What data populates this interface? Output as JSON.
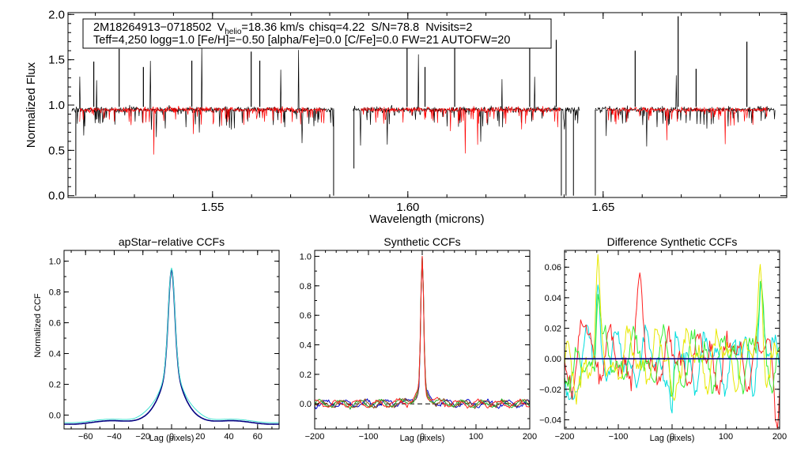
{
  "chart_data": [
    {
      "type": "line",
      "name": "spectrum",
      "xlabel": "Wavelength (microns)",
      "ylabel": "Normalized Flux",
      "xlim": [
        1.513,
        1.697
      ],
      "ylim": [
        -0.02,
        2.02
      ],
      "xticks": [
        "1.55",
        "1.60",
        "1.65"
      ],
      "xtick_values": [
        1.55,
        1.6,
        1.65
      ],
      "yticks": [
        "0.0",
        "0.5",
        "1.0",
        "1.5",
        "2.0"
      ],
      "ytick_values": [
        0.0,
        0.5,
        1.0,
        1.5,
        2.0
      ],
      "chips": [
        [
          1.514,
          1.581
        ],
        [
          1.586,
          1.644
        ],
        [
          1.648,
          1.694
        ]
      ],
      "model_chips": [
        [
          1.516,
          1.579
        ],
        [
          1.588,
          1.639
        ],
        [
          1.651,
          1.692
        ]
      ],
      "series": [
        {
          "name": "observed",
          "color": "#000000"
        },
        {
          "name": "model",
          "color": "#ff0000"
        }
      ],
      "info_text": {
        "star": "2M18264913−0718502",
        "v_label": "V",
        "v_sub": "helio",
        "v_value": "=18.36 km/s",
        "chisq": "chisq=4.22",
        "sn": "S/N=78.8",
        "nvisits": "Nvisits=2",
        "params": "Teff=4,250 logg=1.0 [Fe/H]=−0.50 [alpha/Fe]=0.0 [C/Fe]=0.0 FW=21 AUTOFW=20"
      }
    },
    {
      "type": "line",
      "name": "apstar-ccf",
      "title": "apStar−relative CCFs",
      "xlabel": "Lag (pixels)",
      "ylabel": "Normalized CCF",
      "xlim": [
        -75,
        75
      ],
      "ylim": [
        -0.09,
        1.07
      ],
      "xticks": [
        "−60",
        "−40",
        "−20",
        "0",
        "20",
        "40",
        "60"
      ],
      "xtick_values": [
        -60,
        -40,
        -20,
        0,
        20,
        40,
        60
      ],
      "yticks": [
        "0.0",
        "0.2",
        "0.4",
        "0.6",
        "0.8",
        "1.0"
      ],
      "ytick_values": [
        0.0,
        0.2,
        0.4,
        0.6,
        0.8,
        1.0
      ],
      "series": [
        {
          "name": "ccf-1",
          "color": "#000080"
        },
        {
          "name": "ccf-2",
          "color": "#40e0d0"
        }
      ]
    },
    {
      "type": "line",
      "name": "synthetic-ccf",
      "title": "Synthetic CCFs",
      "xlabel": "Lag (pixels)",
      "xlim": [
        -200,
        200
      ],
      "ylim": [
        -0.17,
        1.04
      ],
      "xticks": [
        "−200",
        "−100",
        "0",
        "100",
        "200"
      ],
      "xtick_values": [
        -200,
        -100,
        0,
        100,
        200
      ],
      "yticks": [
        "0.0",
        "0.2",
        "0.4",
        "0.6",
        "0.8",
        "1.0"
      ],
      "ytick_values": [
        0.0,
        0.2,
        0.4,
        0.6,
        0.8,
        1.0
      ],
      "series": [
        {
          "name": "ccf-1",
          "color": "#0000cc"
        },
        {
          "name": "ccf-2",
          "color": "#8b4513"
        },
        {
          "name": "ccf-3",
          "color": "#22aa22"
        },
        {
          "name": "ccf-4",
          "color": "#ff2020"
        }
      ]
    },
    {
      "type": "line",
      "name": "difference-ccf",
      "title": "Difference Synthetic CCFs",
      "xlabel": "Lag (pixels)",
      "xlim": [
        -200,
        200
      ],
      "ylim": [
        -0.046,
        0.071
      ],
      "xticks": [
        "−200",
        "−100",
        "0",
        "100",
        "200"
      ],
      "xtick_values": [
        -200,
        -100,
        0,
        100,
        200
      ],
      "yticks": [
        "−0.04",
        "−0.02",
        "0.00",
        "0.02",
        "0.04",
        "0.06"
      ],
      "ytick_values": [
        -0.04,
        -0.02,
        0.0,
        0.02,
        0.04,
        0.06
      ],
      "series": [
        {
          "name": "diff-1",
          "color": "#00dddd"
        },
        {
          "name": "diff-2",
          "color": "#ff2020"
        },
        {
          "name": "diff-3",
          "color": "#33ee33"
        },
        {
          "name": "diff-4",
          "color": "#e8e800"
        },
        {
          "name": "zero",
          "color": "#000080"
        }
      ]
    }
  ]
}
